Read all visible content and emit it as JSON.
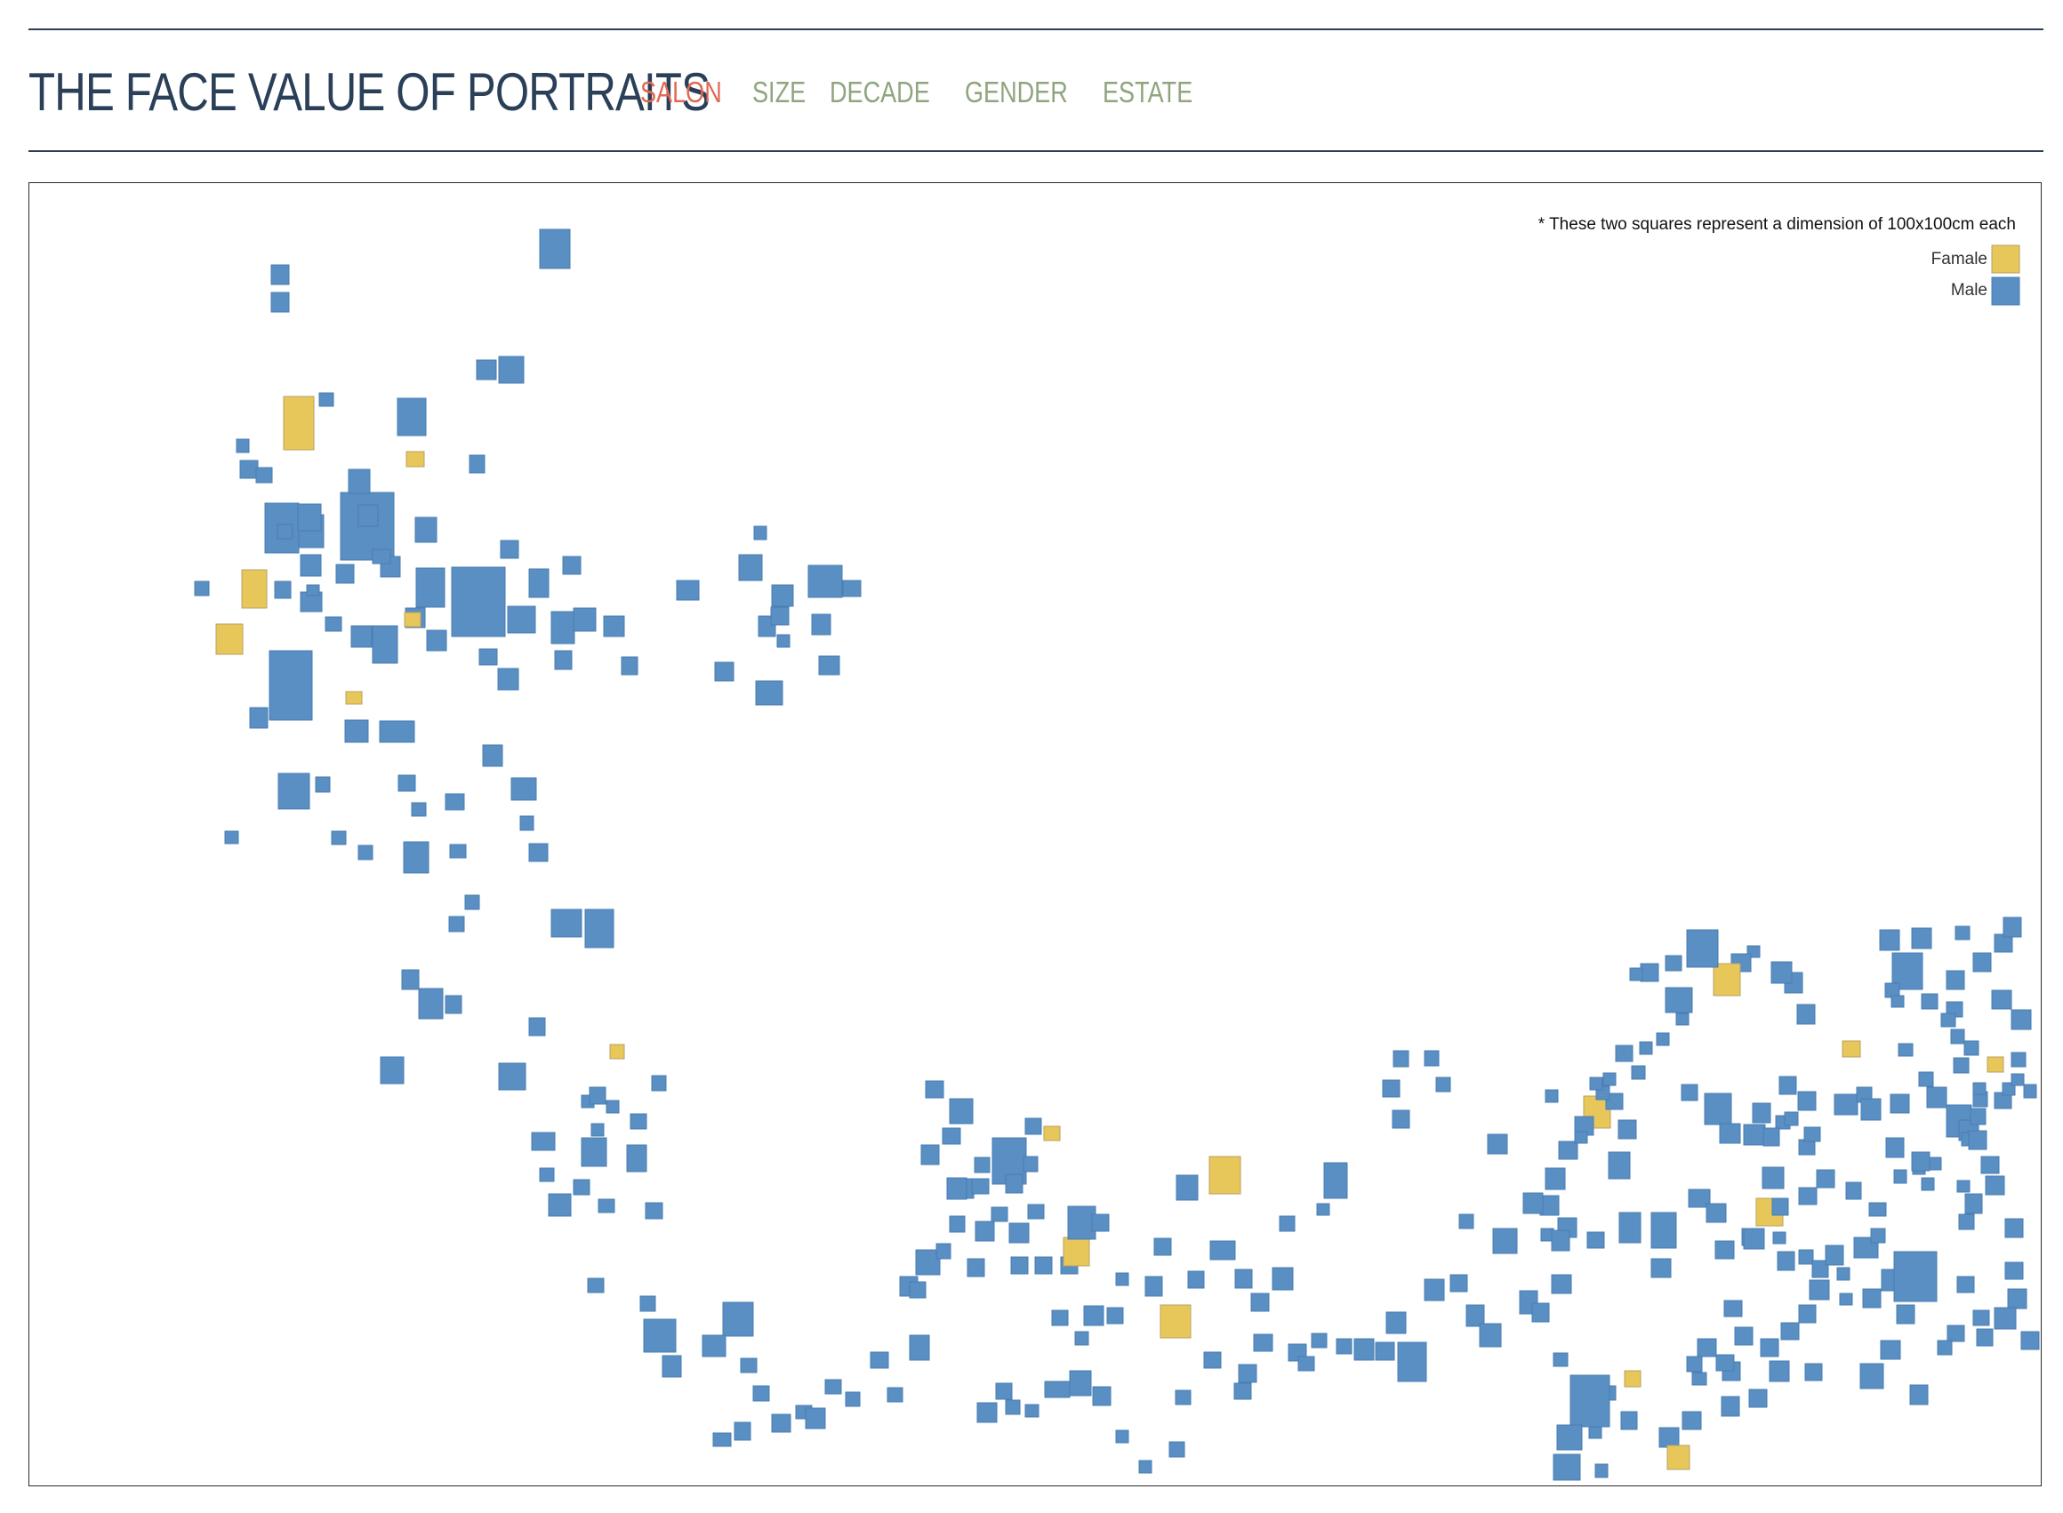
{
  "header": {
    "title": "THE FACE VALUE OF PORTRAITS",
    "tabs": [
      {
        "label": "SALON",
        "active": true
      },
      {
        "label": "SIZE",
        "active": false
      },
      {
        "label": "DECADE",
        "active": false
      },
      {
        "label": "GENDER",
        "active": false
      },
      {
        "label": "ESTATE",
        "active": false
      }
    ]
  },
  "colors": {
    "title": "#2a3f58",
    "tab_active": "#e06a54",
    "tab_inactive": "#8fa57e",
    "male": "#5a8fc4",
    "female": "#e8c75a",
    "female_stroke": "#b8a060",
    "male_stroke": "#4a7db0"
  },
  "legend": {
    "note": "* These two squares represent a dimension of 100x100cm each",
    "items": [
      {
        "label": "Famale",
        "gender": "female"
      },
      {
        "label": "Male",
        "gender": "male"
      }
    ]
  },
  "chart_data": {
    "type": "scatter",
    "title": "",
    "description_units": "each square is one portrait; square area is the painting's dimensions; color is the sitter's gender",
    "series": [
      {
        "name": "Famale",
        "gender": "female"
      },
      {
        "name": "Male",
        "gender": "male"
      }
    ]
  }
}
